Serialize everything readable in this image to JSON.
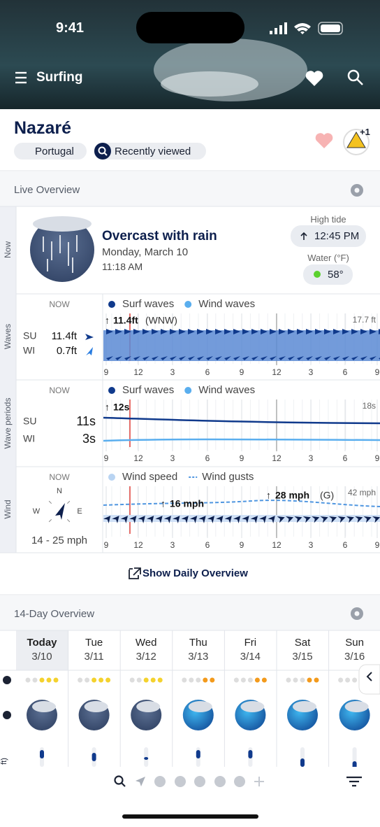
{
  "status": {
    "time": "9:41"
  },
  "header": {
    "title": "Surfing"
  },
  "spot": {
    "name": "Nazaré",
    "country": "Portugal",
    "chip": "Recently viewed",
    "badge": "+1"
  },
  "live": {
    "title": "Live Overview",
    "side": [
      "Now",
      "Waves",
      "Wave periods",
      "Wind"
    ]
  },
  "now": {
    "condition": "Overcast with rain",
    "date": "Monday, March 10",
    "time": "11:18 AM",
    "tide_label": "High tide",
    "tide": "12:45 PM",
    "water_label": "Water (°F)",
    "water": "58°"
  },
  "ticks": [
    "9",
    "12",
    "3",
    "6",
    "9",
    "12",
    "3",
    "6",
    "9"
  ],
  "waves": {
    "now": "NOW",
    "rows": [
      [
        "SU",
        "11.4ft"
      ],
      [
        "WI",
        "0.7ft"
      ]
    ],
    "legend": [
      "Surf waves",
      "Wind waves"
    ],
    "peak": "11.4ft",
    "peak_dir": "(WNW)",
    "max": "17.7 ft"
  },
  "periods": {
    "now": "NOW",
    "rows": [
      [
        "SU",
        "11s"
      ],
      [
        "WI",
        "3s"
      ]
    ],
    "legend": [
      "Surf waves",
      "Wind waves"
    ],
    "peak": "12s",
    "max": "18s"
  },
  "wind": {
    "now": "NOW",
    "compass": [
      "N",
      "W",
      "E"
    ],
    "range": "14 - 25 mph",
    "legend": [
      "Wind speed",
      "Wind gusts"
    ],
    "peak1": "16 mph",
    "peak2": "28 mph",
    "peak2_suffix": "(G)",
    "max": "42 mph"
  },
  "daily_button": "Show Daily Overview",
  "overview": {
    "title": "14-Day Overview",
    "unit_label": "ft)",
    "days": [
      {
        "day": "Today",
        "date": "3/10"
      },
      {
        "day": "Tue",
        "date": "3/11"
      },
      {
        "day": "Wed",
        "date": "3/12"
      },
      {
        "day": "Thu",
        "date": "3/13"
      },
      {
        "day": "Fri",
        "date": "3/14"
      },
      {
        "day": "Sat",
        "date": "3/15"
      },
      {
        "day": "Sun",
        "date": "3/16"
      }
    ]
  }
}
